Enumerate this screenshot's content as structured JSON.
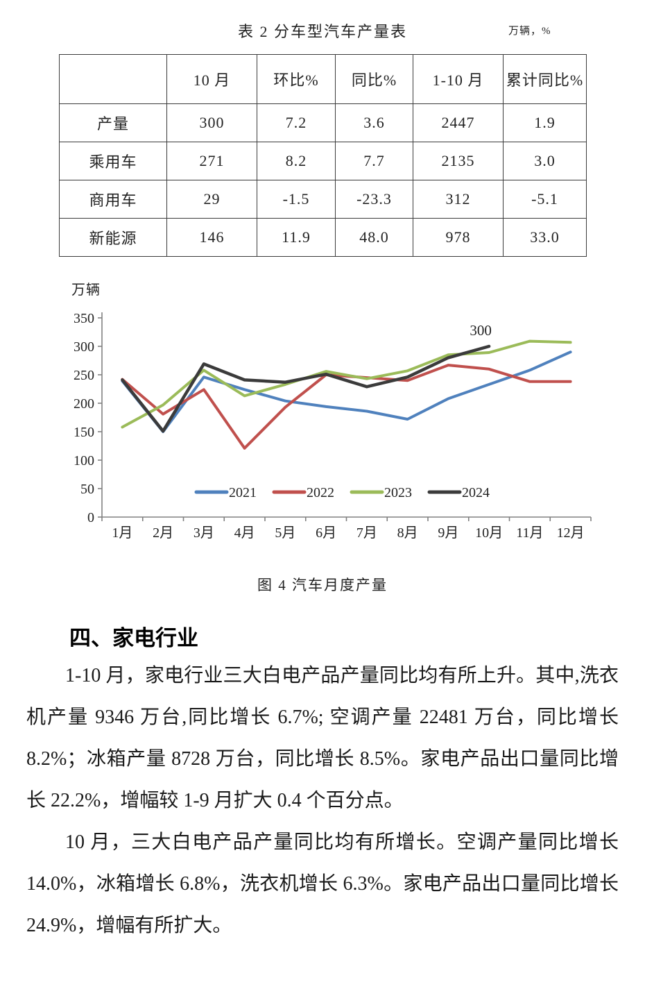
{
  "table": {
    "title": "表 2 分车型汽车产量表",
    "unit_note": "万辆，%",
    "columns": [
      "",
      "10 月",
      "环比%",
      "同比%",
      "1-10 月",
      "累计同比%"
    ],
    "rows": [
      {
        "label": "产量",
        "values": [
          "300",
          "7.2",
          "3.6",
          "2447",
          "1.9"
        ]
      },
      {
        "label": "乘用车",
        "values": [
          "271",
          "8.2",
          "7.7",
          "2135",
          "3.0"
        ]
      },
      {
        "label": "商用车",
        "values": [
          "29",
          "-1.5",
          "-23.3",
          "312",
          "-5.1"
        ]
      },
      {
        "label": "新能源",
        "values": [
          "146",
          "11.9",
          "48.0",
          "978",
          "33.0"
        ]
      }
    ]
  },
  "chart_data": {
    "type": "line",
    "title": "图 4 汽车月度产量",
    "ylabel": "万辆",
    "xlabel": "",
    "categories": [
      "1月",
      "2月",
      "3月",
      "4月",
      "5月",
      "6月",
      "7月",
      "8月",
      "9月",
      "10月",
      "11月",
      "12月"
    ],
    "ylim": [
      0,
      350
    ],
    "ytick_step": 50,
    "grid": false,
    "legend_position": "inside-bottom",
    "annotation": {
      "text": "300",
      "series": "2024",
      "index": 9
    },
    "series": [
      {
        "name": "2021",
        "color": "#4F81BD",
        "values": [
          239,
          150,
          246,
          224,
          204,
          194,
          186,
          172,
          208,
          233,
          258,
          290
        ]
      },
      {
        "name": "2022",
        "color": "#C0504D",
        "values": [
          242,
          181,
          224,
          121,
          193,
          250,
          245,
          240,
          267,
          260,
          238,
          238
        ]
      },
      {
        "name": "2023",
        "color": "#9BBB59",
        "values": [
          158,
          197,
          258,
          213,
          233,
          256,
          243,
          257,
          285,
          289,
          309,
          307
        ]
      },
      {
        "name": "2024",
        "color": "#3B3B3B",
        "values": [
          241,
          151,
          269,
          241,
          237,
          251,
          229,
          246,
          280,
          300,
          null,
          null
        ]
      }
    ]
  },
  "figure_caption": "图 4 汽车月度产量",
  "section": {
    "heading": "四、家电行业",
    "paragraphs": [
      "1-10 月，家电行业三大白电产品产量同比均有所上升。其中,洗衣机产量 9346 万台,同比增长 6.7%; 空调产量 22481 万台，同比增长 8.2%；冰箱产量 8728 万台，同比增长 8.5%。家电产品出口量同比增长 22.2%，增幅较 1-9 月扩大 0.4 个百分点。",
      "10 月，三大白电产品产量同比均有所增长。空调产量同比增长 14.0%，冰箱增长 6.8%，洗衣机增长 6.3%。家电产品出口量同比增长 24.9%，增幅有所扩大。"
    ]
  }
}
